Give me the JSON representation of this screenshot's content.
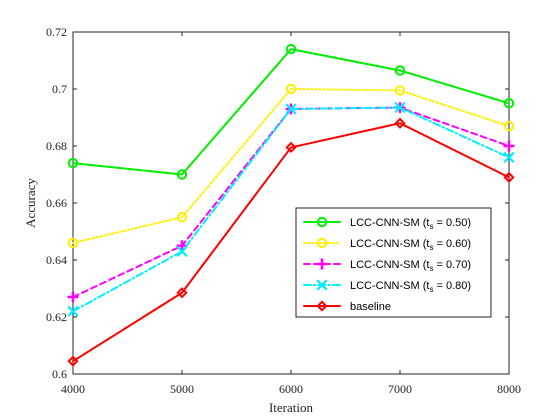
{
  "chart_data": {
    "type": "line",
    "x": [
      4000,
      5000,
      6000,
      7000,
      8000
    ],
    "xlabel": "Iteration",
    "ylabel": "Accuracy",
    "xlim": [
      4000,
      8000
    ],
    "ylim": [
      0.6,
      0.72
    ],
    "x_ticks": [
      "4000",
      "5000",
      "6000",
      "7000",
      "8000"
    ],
    "y_ticks": [
      "0.6",
      "0.62",
      "0.64",
      "0.66",
      "0.68",
      "0.7",
      "0.72"
    ],
    "grid": false,
    "legend_position": "lower-right",
    "series": [
      {
        "name": "LCC-CNN-SM (t_s = 0.50)",
        "legend_prefix": "LCC-CNN-SM (t",
        "legend_sub": "s",
        "legend_suffix": " = 0.50)",
        "values": [
          0.674,
          0.67,
          0.714,
          0.7065,
          0.695
        ],
        "color": "#00ee00",
        "line_style": "solid",
        "marker": "circle"
      },
      {
        "name": "LCC-CNN-SM (t_s = 0.60)",
        "legend_prefix": "LCC-CNN-SM (t",
        "legend_sub": "s",
        "legend_suffix": " = 0.60)",
        "values": [
          0.646,
          0.655,
          0.7,
          0.6995,
          0.687
        ],
        "color": "#ffee00",
        "line_style": "dotted",
        "marker": "circle"
      },
      {
        "name": "LCC-CNN-SM (t_s = 0.70)",
        "legend_prefix": "LCC-CNN-SM (t",
        "legend_sub": "s",
        "legend_suffix": " = 0.70)",
        "values": [
          0.627,
          0.645,
          0.693,
          0.6935,
          0.68
        ],
        "color": "#ff00ff",
        "line_style": "dashed",
        "marker": "plus"
      },
      {
        "name": "LCC-CNN-SM (t_s = 0.80)",
        "legend_prefix": "LCC-CNN-SM (t",
        "legend_sub": "s",
        "legend_suffix": " = 0.80)",
        "values": [
          0.622,
          0.643,
          0.693,
          0.6935,
          0.676
        ],
        "color": "#00eeff",
        "line_style": "dashdot",
        "marker": "x"
      },
      {
        "name": "baseline",
        "legend_prefix": "baseline",
        "legend_sub": "",
        "legend_suffix": "",
        "values": [
          0.6045,
          0.6285,
          0.6795,
          0.688,
          0.669
        ],
        "color": "#ff0000",
        "line_style": "solid",
        "marker": "diamond"
      }
    ]
  }
}
